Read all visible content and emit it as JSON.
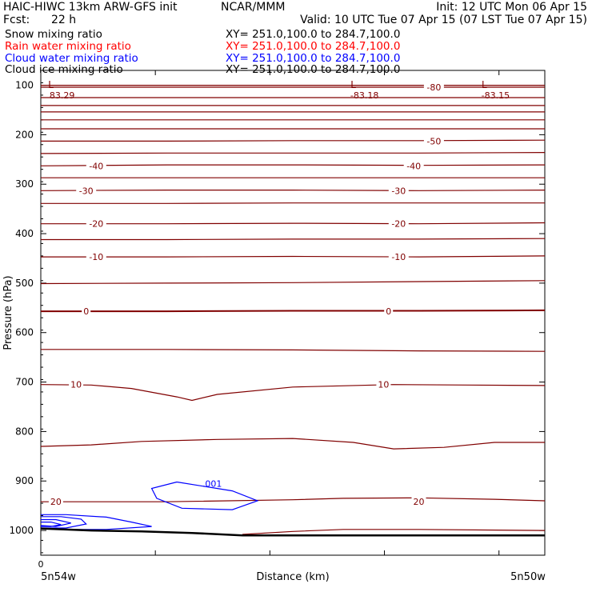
{
  "header": {
    "model": "HAIC-HIWC 13km ARW-GFS init",
    "org": "NCAR/MMM",
    "init": "Init: 12 UTC Mon 06 Apr 15",
    "fcst_label": "Fcst:",
    "fcst_value": "22 h",
    "valid": "Valid: 10 UTC Tue 07 Apr 15 (07 LST Tue 07 Apr 15)"
  },
  "fields": [
    {
      "name": "Snow mixing ratio",
      "xy": "XY= 251.0,100.0 to 284.7,100.0",
      "color": "#000000"
    },
    {
      "name": "Rain water mixing ratio",
      "xy": "XY= 251.0,100.0 to 284.7,100.0",
      "color": "#ff0000"
    },
    {
      "name": "Cloud water mixing ratio",
      "xy": "XY= 251.0,100.0 to 284.7,100.0",
      "color": "#0000ff"
    },
    {
      "name": "Cloud ice mixing ratio",
      "xy": "XY= 251.0,100.0 to 284.7,100.0",
      "color": "#000000"
    }
  ],
  "chart_data": {
    "type": "line",
    "title": "",
    "xlabel": "Distance (km)",
    "ylabel": "Pressure (hPa)",
    "x_tick_label": "0",
    "x_start_label": "5n54w",
    "x_end_label": "5n50w",
    "ylim": [
      1050,
      70
    ],
    "yticks": [
      100,
      200,
      300,
      400,
      500,
      600,
      700,
      800,
      900,
      1000
    ],
    "colors": {
      "temperature": "#800000",
      "cloud_water": "#0000ff",
      "terrain": "#000000",
      "axis": "#000000"
    },
    "low_markers": [
      {
        "label": "L",
        "value": "83.29",
        "x_frac": 0.02
      },
      {
        "label": "L",
        "value": "-83.18",
        "x_frac": 0.62
      },
      {
        "label": "L",
        "value": "-83.15",
        "x_frac": 0.88
      }
    ],
    "temperature_contour_labels": [
      {
        "value": "-80",
        "p": 104,
        "x_frac": 0.78
      },
      {
        "value": "-50",
        "p": 213,
        "x_frac": 0.78
      },
      {
        "value": "-40",
        "p": 263,
        "x_frac": 0.11
      },
      {
        "value": "-40",
        "p": 263,
        "x_frac": 0.74
      },
      {
        "value": "-30",
        "p": 313,
        "x_frac": 0.09
      },
      {
        "value": "-30",
        "p": 313,
        "x_frac": 0.71
      },
      {
        "value": "-20",
        "p": 380,
        "x_frac": 0.11
      },
      {
        "value": "-20",
        "p": 380,
        "x_frac": 0.71
      },
      {
        "value": "-10",
        "p": 447,
        "x_frac": 0.11
      },
      {
        "value": "-10",
        "p": 447,
        "x_frac": 0.71
      },
      {
        "value": "0",
        "p": 557,
        "x_frac": 0.09
      },
      {
        "value": "0",
        "p": 557,
        "x_frac": 0.69
      },
      {
        "value": "10",
        "p": 705,
        "x_frac": 0.07
      },
      {
        "value": "10",
        "p": 705,
        "x_frac": 0.68
      },
      {
        "value": "20",
        "p": 942,
        "x_frac": 0.03
      },
      {
        "value": "20",
        "p": 942,
        "x_frac": 0.75
      }
    ],
    "cloud_water_labels": [
      {
        "value": ".001",
        "p": 905,
        "x_frac": 0.34
      }
    ],
    "temperature_contours": [
      {
        "x": [
          0,
          0.25,
          0.5,
          0.75,
          1
        ],
        "p": [
          100,
          100,
          100,
          100,
          100
        ]
      },
      {
        "x": [
          0,
          0.25,
          0.5,
          0.75,
          1
        ],
        "p": [
          104,
          104,
          104,
          104,
          104
        ]
      },
      {
        "x": [
          0,
          0.25,
          0.5,
          0.75,
          1
        ],
        "p": [
          125,
          125,
          125,
          125,
          125
        ]
      },
      {
        "x": [
          0,
          0.25,
          0.5,
          0.75,
          1
        ],
        "p": [
          141,
          141,
          141,
          141,
          141
        ]
      },
      {
        "x": [
          0,
          0.25,
          0.5,
          0.75,
          1
        ],
        "p": [
          154,
          154,
          154,
          154,
          154
        ]
      },
      {
        "x": [
          0,
          0.25,
          0.5,
          0.75,
          1
        ],
        "p": [
          170,
          170,
          170,
          170,
          170
        ]
      },
      {
        "x": [
          0,
          0.25,
          0.5,
          0.75,
          1
        ],
        "p": [
          188,
          188,
          188,
          188,
          188
        ]
      },
      {
        "x": [
          0,
          0.25,
          0.5,
          0.75,
          1
        ],
        "p": [
          213,
          213,
          212,
          212,
          211
        ]
      },
      {
        "x": [
          0,
          0.25,
          0.5,
          0.75,
          1
        ],
        "p": [
          238,
          237,
          237,
          237,
          236
        ]
      },
      {
        "x": [
          0,
          0.25,
          0.5,
          0.75,
          1
        ],
        "p": [
          263,
          261,
          261,
          262,
          261
        ]
      },
      {
        "x": [
          0,
          0.25,
          0.5,
          0.75,
          1
        ],
        "p": [
          287,
          287,
          287,
          287,
          287
        ]
      },
      {
        "x": [
          0,
          0.25,
          0.5,
          0.75,
          1
        ],
        "p": [
          313,
          312,
          312,
          313,
          312
        ]
      },
      {
        "x": [
          0,
          0.25,
          0.5,
          0.75,
          1
        ],
        "p": [
          339,
          339,
          338,
          338,
          338
        ]
      },
      {
        "x": [
          0,
          0.25,
          0.5,
          0.75,
          1
        ],
        "p": [
          380,
          380,
          379,
          380,
          378
        ]
      },
      {
        "x": [
          0,
          0.25,
          0.5,
          0.75,
          1
        ],
        "p": [
          412,
          412,
          411,
          411,
          410
        ]
      },
      {
        "x": [
          0,
          0.25,
          0.5,
          0.75,
          1
        ],
        "p": [
          447,
          447,
          446,
          447,
          445
        ]
      },
      {
        "x": [
          0,
          0.25,
          0.5,
          0.75,
          1
        ],
        "p": [
          501,
          500,
          499,
          497,
          495
        ]
      },
      {
        "x": [
          0,
          0.25,
          0.5,
          0.75,
          1
        ],
        "p": [
          557,
          557,
          556,
          556,
          555
        ]
      },
      {
        "x": [
          0,
          0.25,
          0.5,
          0.75,
          1
        ],
        "p": [
          634,
          634,
          635,
          637,
          638
        ]
      },
      {
        "x": [
          0,
          0.1,
          0.18,
          0.27,
          0.3,
          0.35,
          0.5,
          0.7,
          0.85,
          1
        ],
        "p": [
          705,
          706,
          713,
          730,
          737,
          725,
          710,
          705,
          706,
          707
        ]
      },
      {
        "x": [
          0,
          0.1,
          0.2,
          0.35,
          0.5,
          0.62,
          0.7,
          0.8,
          0.9,
          1
        ],
        "p": [
          830,
          827,
          820,
          816,
          814,
          822,
          835,
          832,
          822,
          822
        ]
      },
      {
        "x": [
          0,
          0.25,
          0.5,
          0.6,
          0.75,
          0.9,
          1
        ],
        "p": [
          942,
          942,
          938,
          935,
          934,
          937,
          940
        ]
      },
      {
        "x": [
          0.4,
          0.5,
          0.6,
          0.75,
          1
        ],
        "p": [
          1008,
          1002,
          998,
          998,
          1000
        ]
      }
    ],
    "cloud_water_contours": [
      {
        "x": [
          0.27,
          0.22,
          0.23,
          0.28,
          0.38,
          0.43,
          0.38,
          0.27
        ],
        "p": [
          902,
          915,
          935,
          955,
          958,
          940,
          920,
          902
        ]
      },
      {
        "x": [
          0.0,
          0.05,
          0.13,
          0.18,
          0.22,
          0.13,
          0.03,
          0.0
        ],
        "p": [
          968,
          968,
          973,
          983,
          992,
          998,
          998,
          996
        ]
      },
      {
        "x": [
          0.0,
          0.04,
          0.08,
          0.09,
          0.05,
          0.0
        ],
        "p": [
          972,
          972,
          977,
          987,
          995,
          995
        ]
      },
      {
        "x": [
          0.0,
          0.03,
          0.06,
          0.03,
          0.0
        ],
        "p": [
          978,
          978,
          985,
          992,
          990
        ]
      },
      {
        "x": [
          0.0,
          0.02,
          0.04,
          0.02,
          0.0
        ],
        "p": [
          983,
          983,
          988,
          992,
          992
        ]
      }
    ],
    "terrain": {
      "x": [
        0,
        0.1,
        0.2,
        0.3,
        0.4,
        0.5,
        0.6,
        0.7,
        0.8,
        0.9,
        1
      ],
      "p": [
        996,
        1000,
        1002,
        1005,
        1010,
        1010,
        1010,
        1010,
        1010,
        1010,
        1010
      ]
    }
  }
}
